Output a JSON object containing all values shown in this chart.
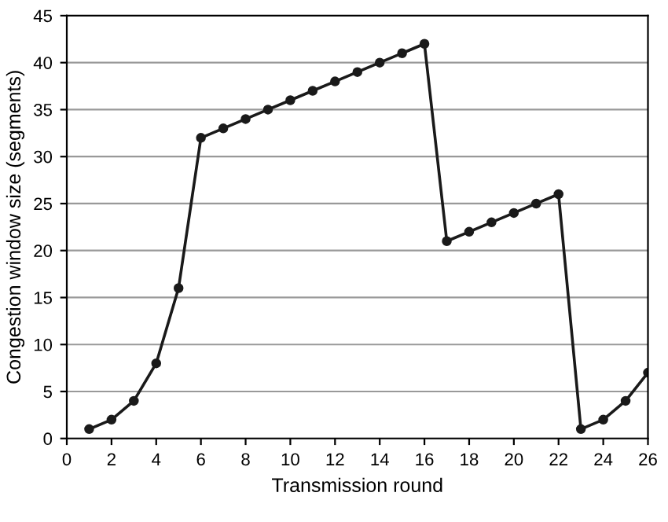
{
  "chart_data": {
    "type": "line",
    "xlabel": "Transmission round",
    "ylabel": "Congestion window size (segments)",
    "x": [
      1,
      2,
      3,
      4,
      5,
      6,
      7,
      8,
      9,
      10,
      11,
      12,
      13,
      14,
      15,
      16,
      17,
      18,
      19,
      20,
      21,
      22,
      23,
      24,
      25,
      26
    ],
    "series": [
      {
        "color": "#1a1a1a",
        "values": [
          1,
          2,
          4,
          8,
          16,
          32,
          33,
          34,
          35,
          36,
          37,
          38,
          39,
          40,
          41,
          42,
          21,
          22,
          23,
          24,
          25,
          26,
          1,
          2,
          4,
          7
        ]
      }
    ],
    "xlim": [
      0,
      26
    ],
    "xticks": [
      0,
      2,
      4,
      6,
      8,
      10,
      12,
      14,
      16,
      18,
      20,
      22,
      24,
      26
    ],
    "ylim": [
      0,
      45
    ],
    "yticks": [
      0,
      5,
      10,
      15,
      20,
      25,
      30,
      35,
      40,
      45
    ],
    "grid": "y",
    "marker": "circle",
    "line_style": "solid"
  }
}
